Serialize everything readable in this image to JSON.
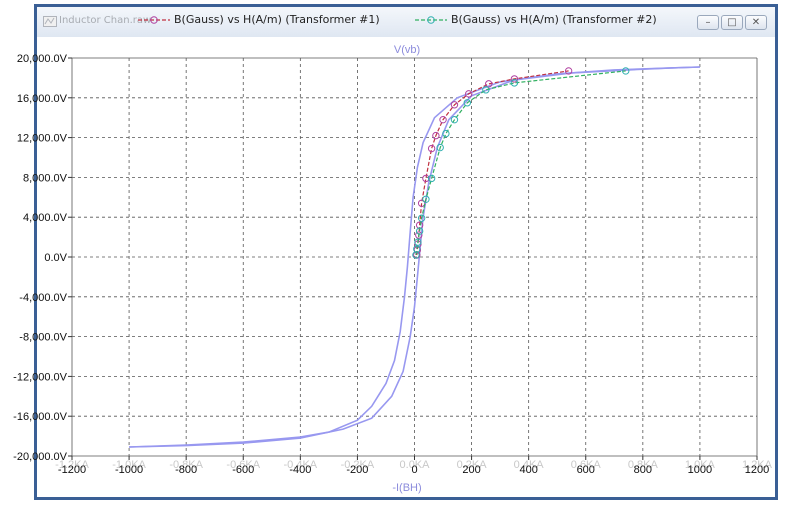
{
  "window": {
    "title": "Inductor Chan.raw",
    "buttons": {
      "minimize": "–",
      "restore": "□",
      "close": "✕"
    }
  },
  "legend": [
    {
      "label": "B(Gauss) vs H(A/m) (Transformer #1)",
      "color": "#c03040",
      "marker_color": "#b040a0"
    },
    {
      "label": "B(Gauss) vs H(A/m) (Transformer #2)",
      "color": "#30b060",
      "marker_color": "#30b0b0"
    }
  ],
  "colors": {
    "trace": "#9898f0",
    "grid": "#555555",
    "frame": "#3a5f95"
  },
  "chart_data": {
    "type": "line",
    "title": "V(vb)",
    "xlabel": "-I(BH)",
    "ylabel": "",
    "xlim": [
      -1200,
      1200
    ],
    "ylim": [
      -20000,
      20000
    ],
    "grid": true,
    "legend_position": "top",
    "x_tick_labels": [
      "-1200",
      "-1000",
      "-800",
      "-600",
      "-400",
      "-200",
      "0",
      "200",
      "400",
      "600",
      "800",
      "1000",
      "1200"
    ],
    "x_tick_sublabels": [
      "-1.2KA",
      "-1.0KA",
      "-0.8KA",
      "-0.6KA",
      "-0.4KA",
      "-0.2KA",
      "0.0KA",
      "0.2KA",
      "0.4KA",
      "0.6KA",
      "0.8KA",
      "1.0KA",
      "1.2KA"
    ],
    "y_tick_labels": [
      "20,000.0V",
      "16,000.0V",
      "12,000.0V",
      "8,000.0V",
      "4,000.0V",
      "0.0V",
      "-4,000.0V",
      "-8,000.0V",
      "-12,000.0V",
      "-16,000.0V",
      "-20,000.0V"
    ],
    "series": [
      {
        "kind": "trace",
        "points": [
          [
            -1000,
            -19100
          ],
          [
            -800,
            -18900
          ],
          [
            -600,
            -18600
          ],
          [
            -400,
            -18100
          ],
          [
            -300,
            -17600
          ],
          [
            -200,
            -16400
          ],
          [
            -150,
            -15000
          ],
          [
            -100,
            -12700
          ],
          [
            -70,
            -10400
          ],
          [
            -50,
            -7500
          ],
          [
            -35,
            -4000
          ],
          [
            -25,
            -1000
          ],
          [
            -15,
            2500
          ],
          [
            -5,
            6000
          ],
          [
            10,
            9000
          ],
          [
            30,
            11500
          ],
          [
            70,
            14000
          ],
          [
            150,
            16000
          ],
          [
            300,
            17600
          ],
          [
            500,
            18400
          ],
          [
            700,
            18800
          ],
          [
            900,
            19000
          ],
          [
            1000,
            19100
          ]
        ]
      },
      {
        "kind": "trace",
        "points": [
          [
            -1000,
            -19100
          ],
          [
            -800,
            -18950
          ],
          [
            -600,
            -18700
          ],
          [
            -400,
            -18200
          ],
          [
            -250,
            -17300
          ],
          [
            -150,
            -16200
          ],
          [
            -80,
            -14000
          ],
          [
            -40,
            -11500
          ],
          [
            -15,
            -8000
          ],
          [
            0,
            -5000
          ],
          [
            10,
            -2000
          ],
          [
            20,
            1000
          ],
          [
            30,
            4000
          ],
          [
            50,
            7500
          ],
          [
            80,
            11000
          ],
          [
            120,
            13800
          ],
          [
            200,
            16200
          ],
          [
            350,
            17800
          ],
          [
            550,
            18500
          ],
          [
            750,
            18800
          ],
          [
            900,
            19000
          ],
          [
            1000,
            19100
          ]
        ]
      },
      {
        "name": "B(Gauss) vs H(A/m) (Transformer #1)",
        "kind": "markers",
        "points": [
          [
            8,
            200
          ],
          [
            10,
            700
          ],
          [
            12,
            1300
          ],
          [
            15,
            2200
          ],
          [
            18,
            3200
          ],
          [
            25,
            5400
          ],
          [
            40,
            7900
          ],
          [
            60,
            10900
          ],
          [
            75,
            12200
          ],
          [
            100,
            13800
          ],
          [
            140,
            15300
          ],
          [
            190,
            16400
          ],
          [
            260,
            17400
          ],
          [
            350,
            17900
          ],
          [
            540,
            18700
          ]
        ]
      },
      {
        "name": "B(Gauss) vs H(A/m) (Transformer #2)",
        "kind": "markers",
        "points": [
          [
            5,
            200
          ],
          [
            8,
            800
          ],
          [
            12,
            1500
          ],
          [
            18,
            2600
          ],
          [
            25,
            3900
          ],
          [
            40,
            5800
          ],
          [
            60,
            7900
          ],
          [
            90,
            11000
          ],
          [
            110,
            12400
          ],
          [
            140,
            13800
          ],
          [
            185,
            15500
          ],
          [
            250,
            16800
          ],
          [
            350,
            17500
          ],
          [
            740,
            18700
          ]
        ]
      }
    ]
  }
}
